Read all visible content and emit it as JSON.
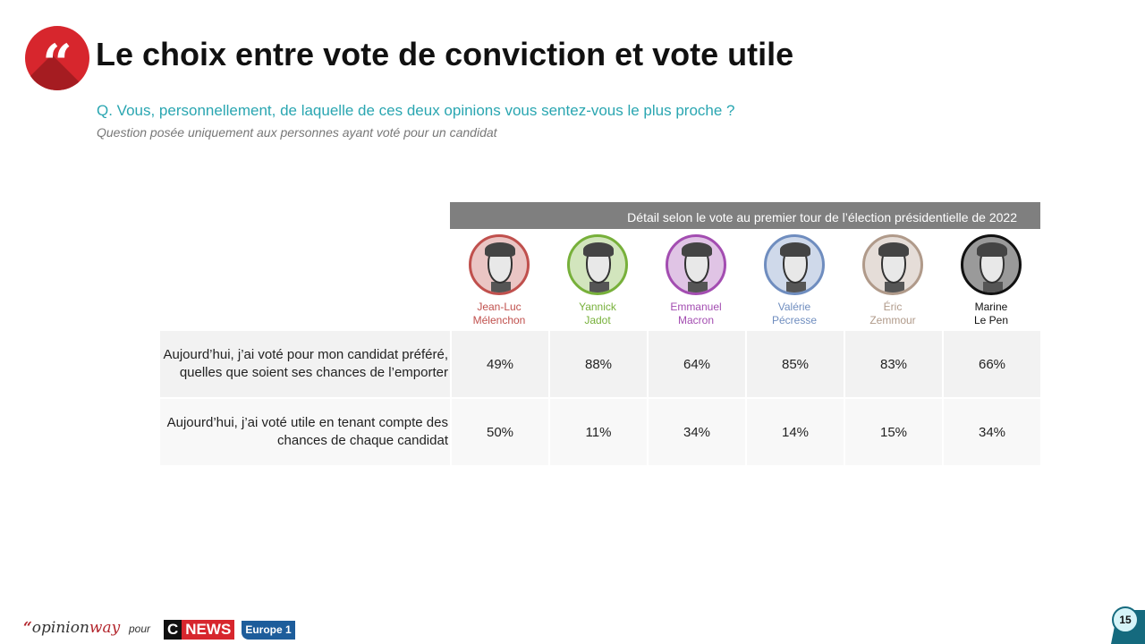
{
  "header": {
    "title": "Le choix entre vote de conviction et vote utile",
    "question": "Q. Vous, personnellement, de laquelle de ces deux opinions vous sentez-vous le plus proche ?",
    "note": "Question posée uniquement aux personnes ayant voté pour un candidat",
    "quote_icon": "quote-icon",
    "quote_glyph": "“"
  },
  "chart_data": {
    "type": "table",
    "title": "Détail selon le vote au premier tour de l’élection présidentielle de 2022",
    "columns": [
      {
        "first": "Jean-Luc",
        "last": "Mélenchon",
        "color": "#c0504d"
      },
      {
        "first": "Yannick",
        "last": "Jadot",
        "color": "#77b03a"
      },
      {
        "first": "Emmanuel",
        "last": "Macron",
        "color": "#a34db1"
      },
      {
        "first": "Valérie",
        "last": "Pécresse",
        "color": "#6f8dbf"
      },
      {
        "first": "Éric",
        "last": "Zemmour",
        "color": "#b09a8a"
      },
      {
        "first": "Marine",
        "last": "Le Pen",
        "color": "#111111"
      }
    ],
    "rows": [
      {
        "label": "Aujourd’hui, j’ai voté pour mon candidat préféré, quelles que soient ses chances de l’emporter",
        "values": [
          "49%",
          "88%",
          "64%",
          "85%",
          "83%",
          "66%"
        ]
      },
      {
        "label": "Aujourd’hui, j’ai voté utile en tenant compte des chances de chaque candidat",
        "values": [
          "50%",
          "11%",
          "34%",
          "14%",
          "15%",
          "34%"
        ]
      }
    ]
  },
  "footer": {
    "brand_quote": "“",
    "brand_a": "opinion",
    "brand_b": "way",
    "pour": "pour",
    "cnews_c": "C",
    "cnews_n": "NEWS",
    "europe": "Europe 1",
    "page_number": "15"
  }
}
